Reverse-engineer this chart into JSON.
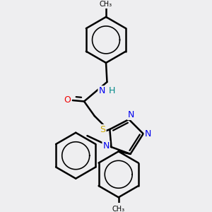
{
  "background_color": "#eeeef0",
  "atom_colors": {
    "C": "#000000",
    "N": "#0000ee",
    "O": "#ee0000",
    "S": "#ccaa00",
    "H": "#008888"
  },
  "bond_color": "#000000",
  "bond_width": 1.8,
  "fig_bg": "#eeeef0"
}
